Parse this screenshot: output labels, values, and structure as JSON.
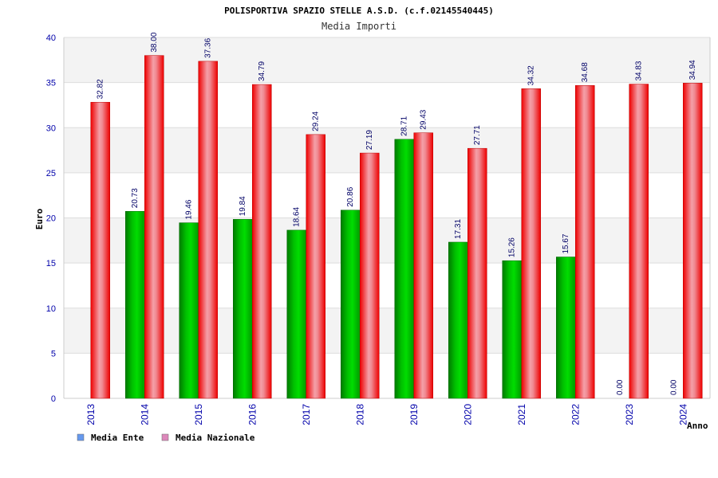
{
  "chart_data": {
    "type": "bar",
    "title": "POLISPORTIVA SPAZIO STELLE A.S.D. (c.f.02145540445)",
    "subtitle": "Media Importi",
    "xlabel": "Anno",
    "ylabel": "Euro",
    "ylim": [
      0,
      40
    ],
    "yticks": [
      "0",
      "5",
      "10",
      "15",
      "20",
      "25",
      "30",
      "35",
      "40"
    ],
    "categories": [
      "2013",
      "2014",
      "2015",
      "2016",
      "2017",
      "2018",
      "2019",
      "2020",
      "2021",
      "2022",
      "2023",
      "2024"
    ],
    "series": [
      {
        "name": "Media Ente",
        "values": [
          null,
          20.73,
          19.46,
          19.84,
          18.64,
          20.86,
          28.71,
          17.31,
          15.26,
          15.67,
          0.0,
          0.0
        ],
        "labels": [
          "",
          "20.73",
          "19.46",
          "19.84",
          "18.64",
          "20.86",
          "28.71",
          "17.31",
          "15.26",
          "15.67",
          "0.00",
          "0.00"
        ]
      },
      {
        "name": "Media Nazionale",
        "values": [
          32.82,
          38.0,
          37.36,
          34.79,
          29.24,
          27.19,
          29.43,
          27.71,
          34.32,
          34.68,
          34.83,
          34.94
        ],
        "labels": [
          "32.82",
          "38.00",
          "37.36",
          "34.79",
          "29.24",
          "27.19",
          "29.43",
          "27.71",
          "34.32",
          "34.68",
          "34.83",
          "34.94"
        ]
      }
    ],
    "legend": [
      {
        "label": "Media Ente",
        "color": "#6699ee"
      },
      {
        "label": "Media Nazionale",
        "color": "#dd88bb"
      }
    ],
    "grid": true
  }
}
